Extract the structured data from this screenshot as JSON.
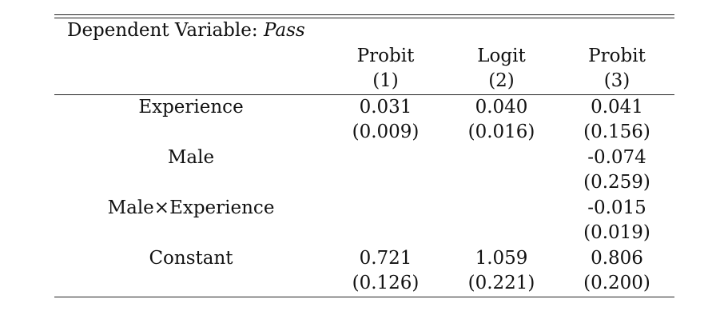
{
  "table": {
    "dependent_variable_prefix": "Dependent Variable:",
    "dependent_variable_name": "Pass",
    "model_names": [
      "Probit",
      "Logit",
      "Probit"
    ],
    "column_numbers": [
      "(1)",
      "(2)",
      "(3)"
    ],
    "rows": [
      {
        "label": "Experience",
        "coefs": [
          "0.031",
          "0.040",
          "0.041"
        ],
        "ses": [
          "(0.009)",
          "(0.016)",
          "(0.156)"
        ]
      },
      {
        "label": "Male",
        "coefs": [
          "",
          "",
          "-0.074"
        ],
        "ses": [
          "",
          "",
          "(0.259)"
        ]
      },
      {
        "label": "Male×Experience",
        "coefs": [
          "",
          "",
          "-0.015"
        ],
        "ses": [
          "",
          "",
          "(0.019)"
        ]
      },
      {
        "label": "Constant",
        "coefs": [
          "0.721",
          "1.059",
          "0.806"
        ],
        "ses": [
          "(0.126)",
          "(0.221)",
          "(0.200)"
        ]
      }
    ]
  }
}
